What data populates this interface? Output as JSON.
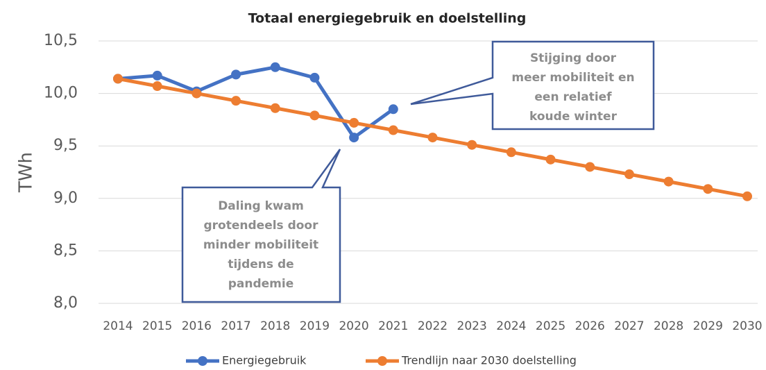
{
  "chart_data": {
    "type": "line",
    "title": "Totaal energiegebruik en doelstelling",
    "y_label": "TWh",
    "categories": [
      "2014",
      "2015",
      "2016",
      "2017",
      "2018",
      "2019",
      "2020",
      "2021",
      "2022",
      "2023",
      "2024",
      "2025",
      "2026",
      "2027",
      "2028",
      "2029",
      "2030"
    ],
    "series": [
      {
        "name": "Energiegebruik",
        "color": "#4472c4",
        "values": [
          10.14,
          10.17,
          10.02,
          10.18,
          10.25,
          10.15,
          9.58,
          9.85,
          null,
          null,
          null,
          null,
          null,
          null,
          null,
          null,
          null
        ]
      },
      {
        "name": "Trendlijn naar 2030 doelstelling",
        "color": "#ed7d31",
        "values": [
          10.14,
          10.07,
          10.0,
          9.93,
          9.86,
          9.79,
          9.72,
          9.65,
          9.58,
          9.51,
          9.44,
          9.37,
          9.3,
          9.23,
          9.16,
          9.09,
          9.02
        ]
      }
    ],
    "ylim": [
      8.0,
      10.5
    ],
    "yticks": [
      {
        "value": 8.0,
        "label": "8,0"
      },
      {
        "value": 8.5,
        "label": "8,5"
      },
      {
        "value": 9.0,
        "label": "9,0"
      },
      {
        "value": 9.5,
        "label": "9,5"
      },
      {
        "value": 10.0,
        "label": "10,0"
      },
      {
        "value": 10.5,
        "label": "10,5"
      }
    ],
    "grid": true,
    "legend": "bottom",
    "annotations": [
      {
        "lines": [
          "Stijging door",
          "meer mobiliteit en",
          "een relatief",
          "koude winter"
        ]
      },
      {
        "lines": [
          "Daling kwam",
          "grotendeels door",
          "minder mobiliteit",
          "tijdens de",
          "pandemie"
        ]
      }
    ]
  }
}
